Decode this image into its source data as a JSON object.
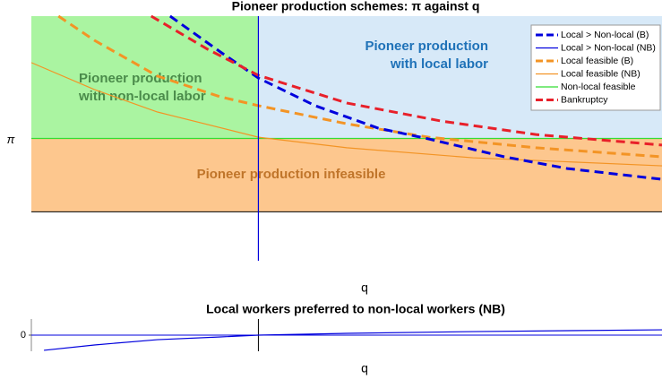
{
  "chart_data": [
    {
      "type": "line",
      "title": "Pioneer production schemes: π against q",
      "xlabel": "q",
      "ylabel": "π",
      "xlim": [
        0,
        1
      ],
      "ylim": [
        0,
        1
      ],
      "vline": 0.36,
      "hline": 0.2,
      "region_colors": {
        "non_local": "#aaf4a1",
        "local": "#d7e9f8",
        "infeasible": "#fdc78e"
      },
      "legend": "upper right",
      "annotations": [
        {
          "lines": [
            "Pioneer production",
            "with local labor"
          ],
          "color": "#1f72b8"
        },
        {
          "lines": [
            "Pioneer production",
            "with non-local labor"
          ],
          "color": "#4a8b4a"
        },
        {
          "lines": [
            "Pioneer production infeasible"
          ],
          "color": "#c0752a"
        }
      ],
      "series": [
        {
          "name": "Local > Non-local (B)",
          "color": "#0000dd",
          "dashed": true,
          "x": [
            0.22,
            0.3,
            0.36,
            0.45,
            0.55,
            0.63,
            0.75,
            0.85,
            1.0
          ],
          "values": [
            1.0,
            0.853,
            0.747,
            0.634,
            0.542,
            0.498,
            0.425,
            0.377,
            0.333
          ]
        },
        {
          "name": "Local > Non-local (NB)",
          "color": "#0000dd",
          "dashed": false,
          "x": [
            0.36,
            0.36
          ],
          "values": [
            0,
            1
          ]
        },
        {
          "name": "Local feasible (B)",
          "color": "#f39425",
          "dashed": true,
          "x": [
            0.043,
            0.1,
            0.2,
            0.3,
            0.36,
            0.5,
            0.63,
            0.8,
            1.0
          ],
          "values": [
            1.0,
            0.901,
            0.755,
            0.67,
            0.634,
            0.56,
            0.505,
            0.462,
            0.425
          ]
        },
        {
          "name": "Local feasible (NB)",
          "color": "#f39425",
          "dashed": false,
          "x": [
            0,
            0.1,
            0.2,
            0.36,
            0.5,
            0.7,
            1.0
          ],
          "values": [
            0.81,
            0.7,
            0.608,
            0.505,
            0.462,
            0.421,
            0.388
          ]
        },
        {
          "name": "Non-local feasible",
          "color": "#33dd33",
          "dashed": false,
          "x": [
            0,
            1
          ],
          "values": [
            0.5,
            0.5
          ]
        },
        {
          "name": "Bankruptcy",
          "color": "#e8202a",
          "dashed": true,
          "x": [
            0.19,
            0.28,
            0.36,
            0.5,
            0.65,
            0.8,
            1.0
          ],
          "values": [
            1.0,
            0.864,
            0.758,
            0.645,
            0.571,
            0.516,
            0.473
          ]
        }
      ]
    },
    {
      "type": "line",
      "title": "Local workers preferred to non-local workers (NB)",
      "xlabel": "q",
      "xlim": [
        0,
        1
      ],
      "ylim": [
        -1,
        1
      ],
      "yticks": [
        0
      ],
      "vline": 0.36,
      "series": [
        {
          "color": "#0000dd",
          "x": [
            0.02,
            0.1,
            0.2,
            0.3,
            0.36,
            0.5,
            0.7,
            1.0
          ],
          "values": [
            -0.94,
            -0.61,
            -0.28,
            -0.11,
            0,
            0.11,
            0.22,
            0.33
          ]
        }
      ]
    }
  ]
}
